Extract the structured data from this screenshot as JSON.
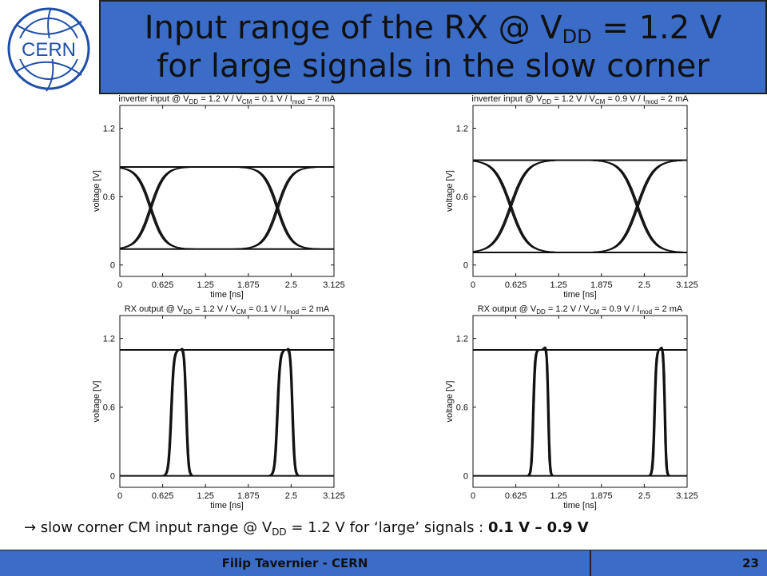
{
  "logo": {
    "text": "CERN"
  },
  "title": {
    "pre": "Input range of the RX @ V",
    "sub": "DD",
    "mid": " = 1.2 V",
    "line2": "for large signals in the slow corner"
  },
  "conclusion": {
    "arrow_text": "→ slow corner CM input range @ V",
    "sub": "DD",
    "mid": " = 1.2 V for ‘large’ signals : ",
    "bold": "0.1 V – 0.9 V"
  },
  "footer": {
    "author": "Filip Tavernier - CERN",
    "page": "23"
  },
  "chart_data": [
    {
      "type": "line",
      "title": {
        "pre": "inverter input @ V",
        "s1": "DD",
        "m1": " = 1.2 V / V",
        "s2": "CM",
        "m2": " = 0.1 V / I",
        "s3": "mod",
        "m3": " = 2 mA"
      },
      "xlabel": "time [ns]",
      "ylabel": "voltage [V]",
      "xlim": [
        0,
        3.125
      ],
      "ylim": [
        -0.1,
        1.4
      ],
      "xticks": [
        "0",
        "0.625",
        "1.25",
        "1.875",
        "2.5",
        "3.125"
      ],
      "yticks": [
        "0",
        "0.6",
        "1.2"
      ],
      "levels": {
        "low": 0.14,
        "high": 0.86
      },
      "edges": [
        {
          "t": 0.45,
          "w": 0.8,
          "dir": "fall"
        },
        {
          "t": 0.45,
          "w": 0.8,
          "dir": "rise"
        },
        {
          "t": 2.3,
          "w": 0.8,
          "dir": "fall"
        },
        {
          "t": 2.3,
          "w": 0.8,
          "dir": "rise"
        }
      ],
      "grid": false
    },
    {
      "type": "line",
      "title": {
        "pre": "inverter input @ V",
        "s1": "DD",
        "m1": " = 1.2 V / V",
        "s2": "CM",
        "m2": " = 0.9 V / I",
        "s3": "mod",
        "m3": " = 2 mA"
      },
      "xlabel": "time [ns]",
      "ylabel": "voltage [V]",
      "xlim": [
        0,
        3.125
      ],
      "ylim": [
        -0.1,
        1.4
      ],
      "xticks": [
        "0",
        "0.625",
        "1.25",
        "1.875",
        "2.5",
        "3.125"
      ],
      "yticks": [
        "0",
        "0.6",
        "1.2"
      ],
      "levels": {
        "low": 0.11,
        "high": 0.92
      },
      "edges": [
        {
          "t": 0.55,
          "w": 0.95,
          "dir": "fall"
        },
        {
          "t": 0.55,
          "w": 0.95,
          "dir": "rise"
        },
        {
          "t": 2.4,
          "w": 0.95,
          "dir": "fall"
        },
        {
          "t": 2.4,
          "w": 0.95,
          "dir": "rise"
        }
      ],
      "grid": false
    },
    {
      "type": "line",
      "title": {
        "pre": "RX output @ V",
        "s1": "DD",
        "m1": " = 1.2 V / V",
        "s2": "CM",
        "m2": " = 0.1 V / I",
        "s3": "mod",
        "m3": " = 2 mA"
      },
      "xlabel": "time [ns]",
      "ylabel": "voltage [V]",
      "xlim": [
        0,
        3.125
      ],
      "ylim": [
        -0.1,
        1.4
      ],
      "xticks": [
        "0",
        "0.625",
        "1.25",
        "1.875",
        "2.5",
        "3.125"
      ],
      "yticks": [
        "0",
        "0.6",
        "1.2"
      ],
      "levels": {
        "low": 0.0,
        "high": 1.1
      },
      "pulses": [
        {
          "rise": 0.75,
          "fall": 0.97,
          "w": 0.15
        },
        {
          "rise": 2.3,
          "fall": 2.52,
          "w": 0.15
        }
      ],
      "grid": false
    },
    {
      "type": "line",
      "title": {
        "pre": "RX output @ V",
        "s1": "DD",
        "m1": " = 1.2 V / V",
        "s2": "CM",
        "m2": " = 0.9 V / I",
        "s3": "mod",
        "m3": " = 2 mA"
      },
      "xlabel": "time [ns]",
      "ylabel": "voltage [V]",
      "xlim": [
        0,
        3.125
      ],
      "ylim": [
        -0.1,
        1.4
      ],
      "xticks": [
        "0",
        "0.625",
        "1.25",
        "1.875",
        "2.5",
        "3.125"
      ],
      "yticks": [
        "0",
        "0.6",
        "1.2"
      ],
      "levels": {
        "low": 0.0,
        "high": 1.1
      },
      "pulses": [
        {
          "rise": 0.88,
          "fall": 1.1,
          "w": 0.1
        },
        {
          "rise": 2.65,
          "fall": 2.8,
          "w": 0.1
        }
      ],
      "grid": false
    }
  ]
}
